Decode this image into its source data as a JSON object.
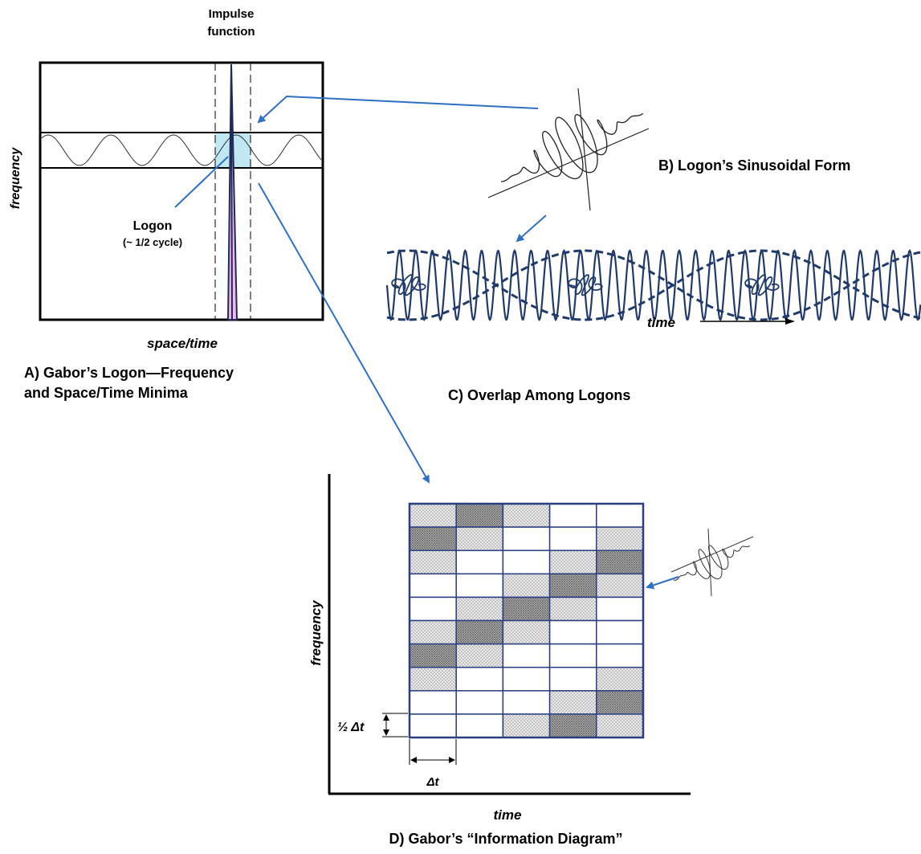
{
  "panel_a": {
    "impulse_label_line1": "Impulse",
    "impulse_label_line2": "function",
    "y_axis_label": "frequency",
    "x_axis_label": "space/time",
    "logon_label": "Logon",
    "logon_sublabel": "(~ 1/2 cycle)",
    "caption_line1": "A) Gabor’s Logon—Frequency",
    "caption_line2": "and Space/Time Minima",
    "colors": {
      "band_highlight": "#bfe8f2",
      "impulse_fill": "#f2b8ec",
      "impulse_stroke": "#1e2a5a"
    }
  },
  "panel_b": {
    "caption": "B) Logon’s Sinusoidal Form"
  },
  "panel_c": {
    "axis_label": "time",
    "caption": "C) Overlap Among Logons",
    "colors": {
      "wave": "#1f3a6b"
    }
  },
  "panel_d": {
    "y_axis_label": "frequency",
    "x_axis_label": "time",
    "row_height_label": "½ Δt",
    "col_width_label": "Δt",
    "caption": "D) Gabor’s “Information Diagram”",
    "grid": {
      "rows": 10,
      "cols": 5,
      "cells": [
        [
          "light",
          "dark",
          "light",
          "white",
          "white"
        ],
        [
          "dark",
          "light",
          "white",
          "white",
          "light"
        ],
        [
          "light",
          "white",
          "white",
          "light",
          "dark"
        ],
        [
          "white",
          "white",
          "light",
          "dark",
          "light"
        ],
        [
          "white",
          "light",
          "dark",
          "light",
          "white"
        ],
        [
          "light",
          "dark",
          "light",
          "white",
          "white"
        ],
        [
          "dark",
          "light",
          "white",
          "white",
          "white"
        ],
        [
          "light",
          "white",
          "white",
          "white",
          "light"
        ],
        [
          "white",
          "white",
          "white",
          "light",
          "dark"
        ],
        [
          "white",
          "white",
          "light",
          "dark",
          "light"
        ]
      ]
    },
    "colors": {
      "grid_line": "#2b3f80",
      "light_cell": "#e3e3e3",
      "dark_cell": "#8e8e8e"
    }
  },
  "arrows": {
    "color": "#2f6fc4"
  }
}
